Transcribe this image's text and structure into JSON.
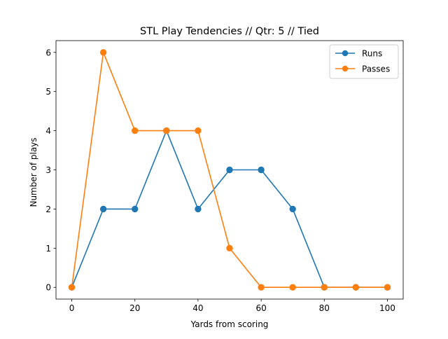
{
  "chart_data": {
    "type": "line",
    "title": "STL Play Tendencies // Qtr: 5 // Tied",
    "xlabel": "Yards from scoring",
    "ylabel": "Number of plays",
    "x": [
      0,
      10,
      20,
      30,
      40,
      50,
      60,
      70,
      80,
      90,
      100
    ],
    "xlim": [
      -5,
      105
    ],
    "ylim": [
      -0.3,
      6.3
    ],
    "xticks": [
      0,
      20,
      40,
      60,
      80,
      100
    ],
    "yticks": [
      0,
      1,
      2,
      3,
      4,
      5,
      6
    ],
    "grid": false,
    "legend_position": "top-right",
    "series": [
      {
        "name": "Runs",
        "color": "#1f77b4",
        "marker": "circle",
        "values": [
          0,
          2,
          2,
          4,
          2,
          3,
          3,
          2,
          0,
          0,
          0
        ]
      },
      {
        "name": "Passes",
        "color": "#ff7f0e",
        "marker": "circle",
        "values": [
          0,
          6,
          4,
          4,
          4,
          1,
          0,
          0,
          0,
          0,
          0
        ]
      }
    ]
  }
}
